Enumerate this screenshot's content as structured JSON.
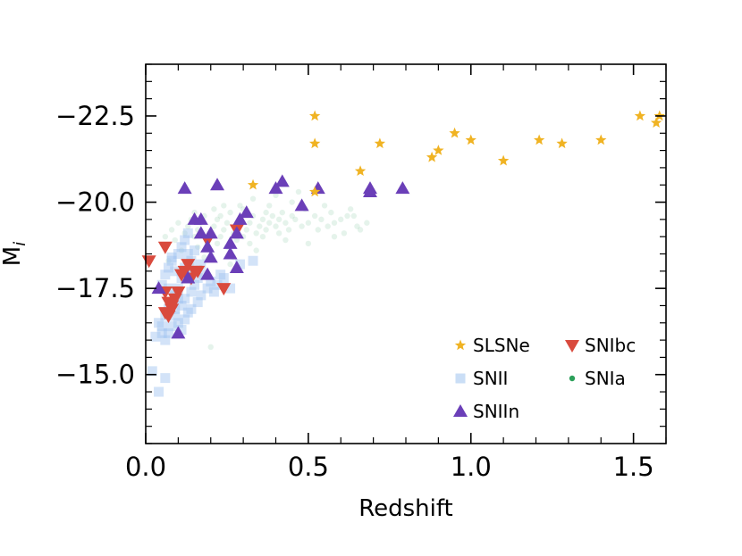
{
  "chart_data": {
    "type": "scatter",
    "xlabel": "Redshift",
    "ylabel": "M",
    "ylabel_sub": "i",
    "xlim": [
      0.0,
      1.6
    ],
    "ylim": [
      -13.0,
      -24.0
    ],
    "y_inverted": true,
    "x_ticks": [
      "0.0",
      "0.5",
      "1.0",
      "1.5"
    ],
    "x_tick_values": [
      0.0,
      0.5,
      1.0,
      1.5
    ],
    "y_ticks": [
      "−22.5",
      "−20.0",
      "−17.5",
      "−15.0"
    ],
    "y_tick_values": [
      -22.5,
      -20.0,
      -17.5,
      -15.0
    ],
    "grid": false,
    "legend_position": "lower-right",
    "legend": [
      "SLSNe",
      "SNIbc",
      "SNII",
      "SNIa",
      "SNIIn"
    ],
    "series": [
      {
        "name": "SNIa",
        "marker": "circle",
        "color": "#2ca05a",
        "opacity": 0.12,
        "points": [
          [
            0.06,
            -19.0
          ],
          [
            0.08,
            -19.2
          ],
          [
            0.1,
            -19.4
          ],
          [
            0.12,
            -19.1
          ],
          [
            0.13,
            -19.3
          ],
          [
            0.14,
            -19.5
          ],
          [
            0.15,
            -19.0
          ],
          [
            0.16,
            -19.2
          ],
          [
            0.17,
            -19.4
          ],
          [
            0.18,
            -19.6
          ],
          [
            0.19,
            -18.8
          ],
          [
            0.2,
            -19.1
          ],
          [
            0.21,
            -19.3
          ],
          [
            0.22,
            -19.5
          ],
          [
            0.23,
            -19.0
          ],
          [
            0.24,
            -19.2
          ],
          [
            0.25,
            -19.4
          ],
          [
            0.26,
            -19.7
          ],
          [
            0.27,
            -19.1
          ],
          [
            0.28,
            -19.3
          ],
          [
            0.29,
            -19.5
          ],
          [
            0.3,
            -19.0
          ],
          [
            0.31,
            -19.2
          ],
          [
            0.32,
            -19.4
          ],
          [
            0.33,
            -19.6
          ],
          [
            0.34,
            -19.1
          ],
          [
            0.35,
            -19.3
          ],
          [
            0.36,
            -19.5
          ],
          [
            0.37,
            -19.2
          ],
          [
            0.38,
            -19.4
          ],
          [
            0.39,
            -19.6
          ],
          [
            0.4,
            -19.3
          ],
          [
            0.41,
            -19.5
          ],
          [
            0.42,
            -19.7
          ],
          [
            0.43,
            -19.4
          ],
          [
            0.44,
            -19.2
          ],
          [
            0.45,
            -19.6
          ],
          [
            0.46,
            -19.5
          ],
          [
            0.48,
            -19.3
          ],
          [
            0.5,
            -19.4
          ],
          [
            0.52,
            -19.6
          ],
          [
            0.54,
            -19.5
          ],
          [
            0.56,
            -19.3
          ],
          [
            0.58,
            -19.4
          ],
          [
            0.6,
            -19.5
          ],
          [
            0.62,
            -19.6
          ],
          [
            0.65,
            -19.3
          ],
          [
            0.68,
            -19.4
          ],
          [
            0.18,
            -18.4
          ],
          [
            0.2,
            -18.6
          ],
          [
            0.22,
            -18.8
          ],
          [
            0.25,
            -18.7
          ],
          [
            0.28,
            -18.9
          ],
          [
            0.32,
            -18.8
          ],
          [
            0.36,
            -19.0
          ],
          [
            0.15,
            -19.7
          ],
          [
            0.21,
            -19.8
          ],
          [
            0.24,
            -19.9
          ],
          [
            0.3,
            -19.8
          ],
          [
            0.38,
            -19.9
          ],
          [
            0.45,
            -20.0
          ],
          [
            0.55,
            -19.9
          ],
          [
            0.63,
            -19.8
          ],
          [
            0.2,
            -15.8
          ],
          [
            0.26,
            -18.2
          ],
          [
            0.11,
            -18.6
          ],
          [
            0.09,
            -18.9
          ],
          [
            0.07,
            -18.3
          ],
          [
            0.17,
            -18.1
          ],
          [
            0.27,
            -18.4
          ],
          [
            0.34,
            -18.6
          ],
          [
            0.43,
            -18.9
          ],
          [
            0.5,
            -18.8
          ],
          [
            0.58,
            -19.0
          ],
          [
            0.66,
            -19.2
          ],
          [
            0.33,
            -20.1
          ],
          [
            0.4,
            -20.2
          ],
          [
            0.47,
            -20.3
          ],
          [
            0.14,
            -18.2
          ],
          [
            0.16,
            -18.7
          ],
          [
            0.23,
            -19.6
          ],
          [
            0.29,
            -19.9
          ],
          [
            0.37,
            -19.7
          ],
          [
            0.41,
            -19.1
          ],
          [
            0.49,
            -19.8
          ],
          [
            0.53,
            -19.2
          ],
          [
            0.57,
            -19.7
          ],
          [
            0.61,
            -19.1
          ],
          [
            0.64,
            -19.6
          ]
        ]
      },
      {
        "name": "SNII",
        "marker": "square",
        "color": "#9ec2ef",
        "opacity": 0.45,
        "points": [
          [
            0.02,
            -15.1
          ],
          [
            0.04,
            -14.5
          ],
          [
            0.06,
            -14.9
          ],
          [
            0.03,
            -16.1
          ],
          [
            0.05,
            -16.2
          ],
          [
            0.04,
            -16.5
          ],
          [
            0.06,
            -16.7
          ],
          [
            0.07,
            -16.9
          ],
          [
            0.08,
            -17.1
          ],
          [
            0.09,
            -17.3
          ],
          [
            0.1,
            -17.5
          ],
          [
            0.05,
            -17.6
          ],
          [
            0.06,
            -17.9
          ],
          [
            0.07,
            -18.1
          ],
          [
            0.08,
            -18.3
          ],
          [
            0.09,
            -18.0
          ],
          [
            0.1,
            -18.5
          ],
          [
            0.11,
            -18.7
          ],
          [
            0.12,
            -18.9
          ],
          [
            0.13,
            -19.1
          ],
          [
            0.14,
            -18.3
          ],
          [
            0.15,
            -18.6
          ],
          [
            0.11,
            -17.0
          ],
          [
            0.12,
            -17.2
          ],
          [
            0.13,
            -16.8
          ],
          [
            0.1,
            -16.5
          ],
          [
            0.09,
            -16.7
          ],
          [
            0.08,
            -16.4
          ],
          [
            0.07,
            -16.2
          ],
          [
            0.06,
            -16.0
          ],
          [
            0.14,
            -17.4
          ],
          [
            0.15,
            -17.6
          ],
          [
            0.16,
            -17.8
          ],
          [
            0.17,
            -17.3
          ],
          [
            0.18,
            -17.9
          ],
          [
            0.19,
            -17.5
          ],
          [
            0.2,
            -17.7
          ],
          [
            0.21,
            -17.4
          ],
          [
            0.22,
            -17.6
          ],
          [
            0.23,
            -17.9
          ],
          [
            0.24,
            -17.8
          ],
          [
            0.26,
            -17.5
          ],
          [
            0.29,
            -18.2
          ],
          [
            0.33,
            -18.3
          ],
          [
            0.12,
            -18.1
          ],
          [
            0.11,
            -17.8
          ],
          [
            0.13,
            -17.9
          ],
          [
            0.1,
            -17.2
          ],
          [
            0.09,
            -16.9
          ],
          [
            0.08,
            -18.4
          ],
          [
            0.12,
            -16.6
          ],
          [
            0.14,
            -16.9
          ],
          [
            0.16,
            -17.1
          ],
          [
            0.07,
            -17.5
          ],
          [
            0.11,
            -16.3
          ],
          [
            0.15,
            -18.0
          ],
          [
            0.17,
            -18.2
          ],
          [
            0.05,
            -16.4
          ],
          [
            0.13,
            -18.5
          ]
        ]
      },
      {
        "name": "SNIbc",
        "marker": "triangle-down",
        "color": "#d94a3d",
        "opacity": 1,
        "points": [
          [
            0.01,
            -18.3
          ],
          [
            0.06,
            -18.7
          ],
          [
            0.06,
            -17.4
          ],
          [
            0.07,
            -17.1
          ],
          [
            0.08,
            -16.9
          ],
          [
            0.07,
            -16.7
          ],
          [
            0.09,
            -17.2
          ],
          [
            0.1,
            -17.4
          ],
          [
            0.11,
            -17.9
          ],
          [
            0.12,
            -18.0
          ],
          [
            0.14,
            -17.8
          ],
          [
            0.15,
            -18.0
          ],
          [
            0.16,
            -18.0
          ],
          [
            0.19,
            -18.9
          ],
          [
            0.24,
            -17.5
          ],
          [
            0.28,
            -19.2
          ],
          [
            0.08,
            -17.0
          ],
          [
            0.06,
            -16.8
          ],
          [
            0.13,
            -18.2
          ]
        ]
      },
      {
        "name": "SNIIn",
        "marker": "triangle-up",
        "color": "#6b3fb8",
        "opacity": 1,
        "points": [
          [
            0.04,
            -17.5
          ],
          [
            0.1,
            -16.2
          ],
          [
            0.12,
            -20.4
          ],
          [
            0.15,
            -19.5
          ],
          [
            0.17,
            -19.5
          ],
          [
            0.2,
            -19.1
          ],
          [
            0.19,
            -18.7
          ],
          [
            0.2,
            -18.4
          ],
          [
            0.19,
            -17.9
          ],
          [
            0.22,
            -20.5
          ],
          [
            0.26,
            -18.8
          ],
          [
            0.26,
            -18.5
          ],
          [
            0.29,
            -19.5
          ],
          [
            0.28,
            -19.1
          ],
          [
            0.28,
            -18.1
          ],
          [
            0.31,
            -19.7
          ],
          [
            0.4,
            -20.4
          ],
          [
            0.42,
            -20.6
          ],
          [
            0.48,
            -19.9
          ],
          [
            0.53,
            -20.4
          ],
          [
            0.69,
            -20.4
          ],
          [
            0.69,
            -20.3
          ],
          [
            0.79,
            -20.4
          ],
          [
            0.13,
            -17.8
          ],
          [
            0.17,
            -19.1
          ]
        ]
      },
      {
        "name": "SLSNe",
        "marker": "star",
        "color": "#f0b323",
        "opacity": 1,
        "points": [
          [
            0.33,
            -20.5
          ],
          [
            0.52,
            -22.5
          ],
          [
            0.52,
            -21.7
          ],
          [
            0.52,
            -20.3
          ],
          [
            0.66,
            -20.9
          ],
          [
            0.72,
            -21.7
          ],
          [
            0.88,
            -21.3
          ],
          [
            0.9,
            -21.5
          ],
          [
            0.95,
            -22.0
          ],
          [
            1.0,
            -21.8
          ],
          [
            1.1,
            -21.2
          ],
          [
            1.21,
            -21.8
          ],
          [
            1.28,
            -21.7
          ],
          [
            1.4,
            -21.8
          ],
          [
            1.52,
            -22.5
          ],
          [
            1.57,
            -22.3
          ],
          [
            1.58,
            -22.5
          ]
        ]
      }
    ]
  }
}
